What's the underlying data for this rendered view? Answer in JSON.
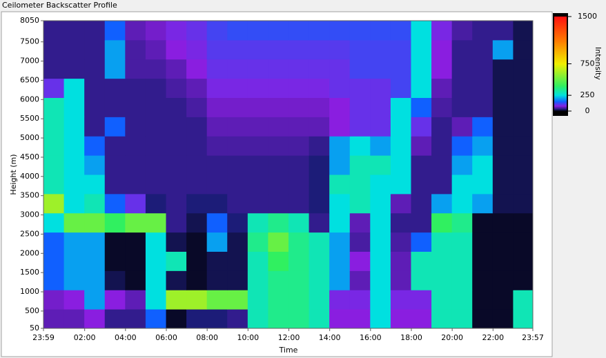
{
  "chart_data": {
    "type": "heatmap",
    "title": "Ceilometer Backscatter Profile",
    "x_label": "Time",
    "y_label": "Height (m)",
    "colorbar_label": "Intensity",
    "xlim": [
      -1,
      1437
    ],
    "xticks": [
      {
        "value": -1,
        "label": "23:59"
      },
      {
        "value": 120,
        "label": "02:00"
      },
      {
        "value": 240,
        "label": "04:00"
      },
      {
        "value": 360,
        "label": "06:00"
      },
      {
        "value": 480,
        "label": "08:00"
      },
      {
        "value": 600,
        "label": "10:00"
      },
      {
        "value": 720,
        "label": "12:00"
      },
      {
        "value": 840,
        "label": "14:00"
      },
      {
        "value": 960,
        "label": "16:00"
      },
      {
        "value": 1080,
        "label": "18:00"
      },
      {
        "value": 1200,
        "label": "20:00"
      },
      {
        "value": 1320,
        "label": "22:00"
      },
      {
        "value": 1437,
        "label": "23:57"
      }
    ],
    "ylim": [
      50,
      8050
    ],
    "yticks": [
      50,
      500,
      1000,
      1500,
      2000,
      2500,
      3000,
      3500,
      4000,
      4500,
      5000,
      5500,
      6000,
      6500,
      7000,
      7500,
      8050
    ],
    "zlim": [
      0,
      1500
    ],
    "zticks": [
      0,
      250,
      750,
      1500
    ],
    "colorscale": [
      [
        0,
        "#000000"
      ],
      [
        30,
        "#1c1c78"
      ],
      [
        80,
        "#8a1ee0"
      ],
      [
        150,
        "#1060ff"
      ],
      [
        250,
        "#00e0e0"
      ],
      [
        400,
        "#30f060"
      ],
      [
        750,
        "#f0f000"
      ],
      [
        1100,
        "#ff8000"
      ],
      [
        1500,
        "#ff1010"
      ]
    ],
    "x": [
      29,
      89,
      149,
      209,
      269,
      329,
      389,
      449,
      509,
      569,
      629,
      689,
      749,
      809,
      869,
      929,
      989,
      1049,
      1109,
      1169,
      1229,
      1289,
      1349,
      1409
    ],
    "y": [
      300,
      800,
      1300,
      1800,
      2300,
      2800,
      3300,
      3800,
      4300,
      4800,
      5300,
      5800,
      6300,
      6800,
      7300,
      7800
    ],
    "values": [
      [
        60,
        60,
        80,
        40,
        40,
        150,
        10,
        30,
        30,
        40,
        300,
        350,
        350,
        300,
        80,
        80,
        250,
        80,
        80,
        300,
        300,
        10,
        10,
        300
      ],
      [
        70,
        80,
        200,
        80,
        60,
        250,
        600,
        600,
        500,
        500,
        300,
        350,
        350,
        300,
        90,
        90,
        250,
        90,
        90,
        300,
        300,
        10,
        10,
        300
      ],
      [
        150,
        200,
        200,
        20,
        10,
        250,
        20,
        10,
        20,
        20,
        300,
        350,
        350,
        300,
        200,
        60,
        250,
        60,
        300,
        300,
        300,
        10,
        10,
        10
      ],
      [
        150,
        200,
        200,
        10,
        10,
        250,
        300,
        10,
        20,
        20,
        300,
        400,
        350,
        300,
        200,
        80,
        250,
        60,
        300,
        300,
        300,
        10,
        10,
        10
      ],
      [
        150,
        200,
        200,
        10,
        10,
        250,
        20,
        10,
        200,
        20,
        350,
        500,
        350,
        300,
        200,
        50,
        250,
        50,
        150,
        300,
        300,
        10,
        10,
        10
      ],
      [
        250,
        500,
        500,
        400,
        500,
        500,
        40,
        20,
        150,
        30,
        300,
        350,
        300,
        40,
        250,
        60,
        250,
        40,
        40,
        400,
        350,
        10,
        10,
        10
      ],
      [
        600,
        250,
        300,
        150,
        100,
        30,
        40,
        30,
        30,
        40,
        40,
        40,
        40,
        30,
        250,
        300,
        250,
        60,
        40,
        200,
        250,
        200,
        20,
        20
      ],
      [
        300,
        250,
        250,
        40,
        40,
        40,
        40,
        40,
        40,
        40,
        40,
        40,
        40,
        30,
        300,
        300,
        250,
        250,
        40,
        40,
        250,
        250,
        20,
        20
      ],
      [
        300,
        250,
        200,
        40,
        40,
        40,
        40,
        40,
        40,
        40,
        40,
        40,
        40,
        30,
        200,
        300,
        300,
        250,
        40,
        40,
        200,
        250,
        20,
        20
      ],
      [
        300,
        250,
        150,
        40,
        40,
        40,
        40,
        40,
        50,
        50,
        50,
        50,
        50,
        40,
        200,
        250,
        200,
        250,
        60,
        40,
        150,
        200,
        20,
        20
      ],
      [
        300,
        250,
        40,
        150,
        40,
        40,
        40,
        40,
        60,
        60,
        60,
        60,
        60,
        60,
        80,
        100,
        100,
        250,
        100,
        40,
        60,
        150,
        20,
        20
      ],
      [
        300,
        250,
        40,
        40,
        40,
        40,
        40,
        50,
        70,
        70,
        70,
        70,
        70,
        70,
        80,
        100,
        100,
        250,
        150,
        50,
        40,
        40,
        20,
        20
      ],
      [
        100,
        250,
        40,
        40,
        40,
        40,
        50,
        60,
        90,
        90,
        90,
        90,
        90,
        90,
        100,
        100,
        100,
        120,
        250,
        60,
        40,
        40,
        20,
        20
      ],
      [
        40,
        40,
        40,
        200,
        50,
        50,
        60,
        80,
        100,
        100,
        100,
        100,
        100,
        100,
        100,
        120,
        120,
        120,
        250,
        80,
        40,
        40,
        20,
        20
      ],
      [
        40,
        40,
        40,
        200,
        50,
        60,
        80,
        90,
        110,
        110,
        110,
        110,
        110,
        110,
        110,
        120,
        120,
        120,
        250,
        80,
        40,
        40,
        200,
        20
      ],
      [
        40,
        40,
        40,
        150,
        60,
        70,
        90,
        100,
        120,
        130,
        130,
        130,
        130,
        130,
        130,
        130,
        130,
        130,
        250,
        90,
        50,
        40,
        40,
        20
      ]
    ]
  }
}
